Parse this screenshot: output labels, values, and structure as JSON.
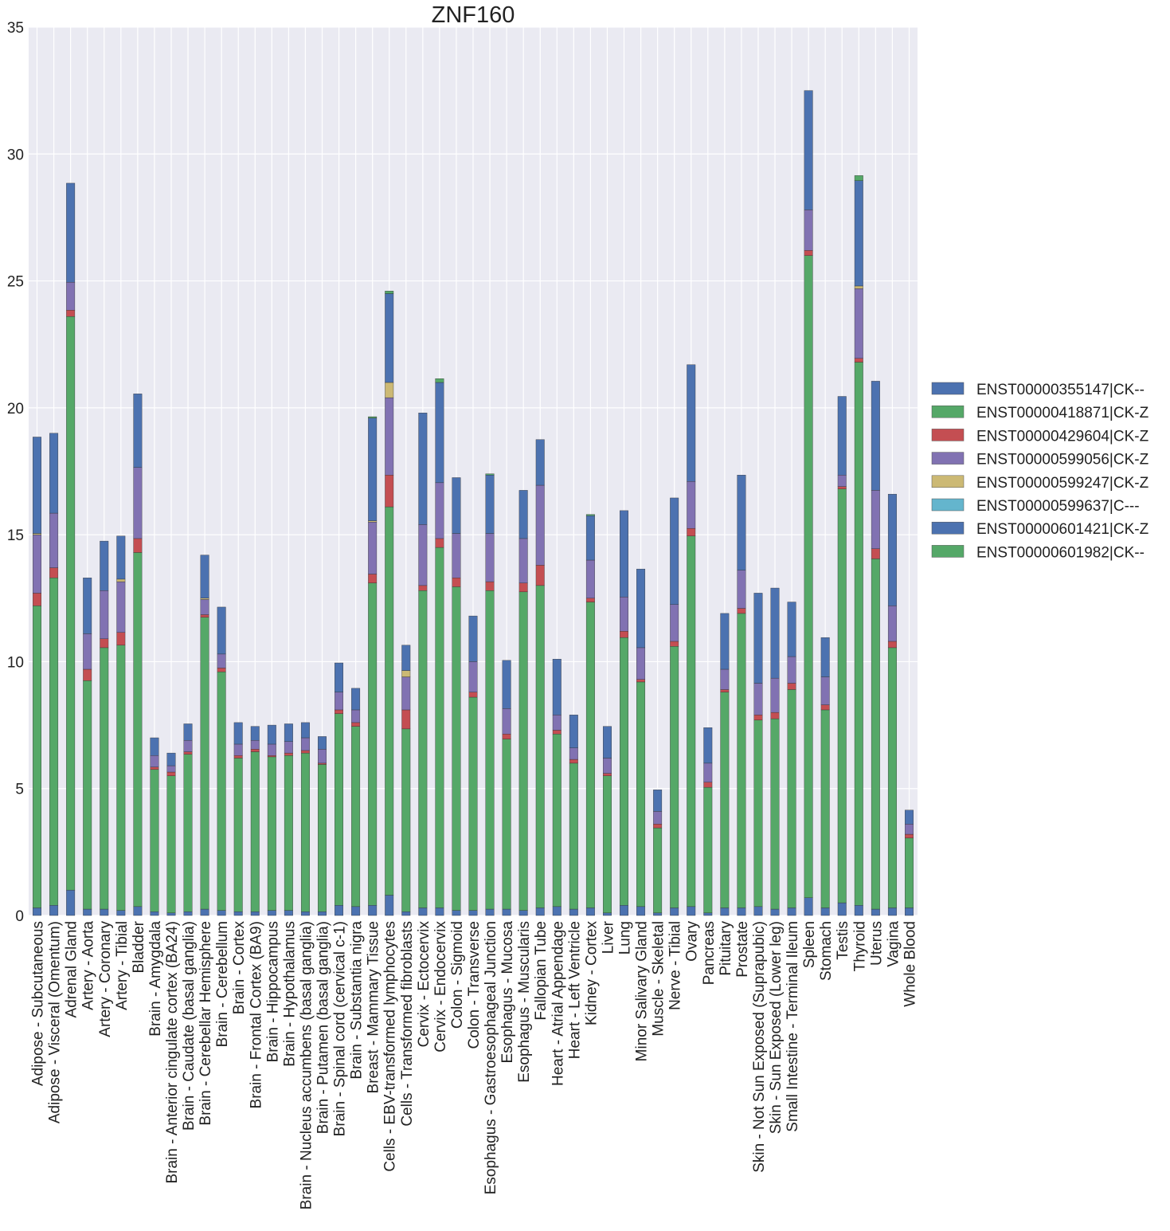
{
  "chart_data": {
    "type": "bar",
    "stacked": true,
    "title": "ZNF160",
    "xlabel": "",
    "ylabel": "",
    "ylim": [
      0,
      35
    ],
    "yticks": [
      0,
      5,
      10,
      15,
      20,
      25,
      30,
      35
    ],
    "grid": true,
    "legend_position": "right",
    "categories": [
      "Adipose - Subcutaneous",
      "Adipose - Visceral (Omentum)",
      "Adrenal Gland",
      "Artery - Aorta",
      "Artery - Coronary",
      "Artery - Tibial",
      "Bladder",
      "Brain - Amygdala",
      "Brain - Anterior cingulate cortex (BA24)",
      "Brain - Caudate (basal ganglia)",
      "Brain - Cerebellar Hemisphere",
      "Brain - Cerebellum",
      "Brain - Cortex",
      "Brain - Frontal Cortex (BA9)",
      "Brain - Hippocampus",
      "Brain - Hypothalamus",
      "Brain - Nucleus accumbens (basal ganglia)",
      "Brain - Putamen (basal ganglia)",
      "Brain - Spinal cord (cervical c-1)",
      "Brain - Substantia nigra",
      "Breast - Mammary Tissue",
      "Cells - EBV-transformed lymphocytes",
      "Cells - Transformed fibroblasts",
      "Cervix - Ectocervix",
      "Cervix - Endocervix",
      "Colon - Sigmoid",
      "Colon - Transverse",
      "Esophagus - Gastroesophageal Junction",
      "Esophagus - Mucosa",
      "Esophagus - Muscularis",
      "Fallopian Tube",
      "Heart - Atrial Appendage",
      "Heart - Left Ventricle",
      "Kidney - Cortex",
      "Liver",
      "Lung",
      "Minor Salivary Gland",
      "Muscle - Skeletal",
      "Nerve - Tibial",
      "Ovary",
      "Pancreas",
      "Pituitary",
      "Prostate",
      "Skin - Not Sun Exposed (Suprapubic)",
      "Skin - Sun Exposed (Lower leg)",
      "Small Intestine - Terminal Ileum",
      "Spleen",
      "Stomach",
      "Testis",
      "Thyroid",
      "Uterus",
      "Vagina",
      "Whole Blood"
    ],
    "series": [
      {
        "name": "ENST00000355147|CK--",
        "color": "#4C72B0",
        "values": [
          0.3,
          0.4,
          1.0,
          0.25,
          0.25,
          0.2,
          0.35,
          0.15,
          0.1,
          0.15,
          0.25,
          0.2,
          0.15,
          0.15,
          0.2,
          0.2,
          0.15,
          0.15,
          0.4,
          0.35,
          0.4,
          0.8,
          0.15,
          0.3,
          0.3,
          0.2,
          0.2,
          0.25,
          0.25,
          0.2,
          0.3,
          0.35,
          0.25,
          0.3,
          0.1,
          0.4,
          0.35,
          0.1,
          0.3,
          0.35,
          0.1,
          0.3,
          0.3,
          0.35,
          0.25,
          0.3,
          0.7,
          0.3,
          0.5,
          0.4,
          0.25,
          0.3,
          0.3
        ]
      },
      {
        "name": "ENST00000418871|CK-Z",
        "color": "#55A868",
        "values": [
          11.9,
          12.9,
          22.6,
          9.0,
          10.3,
          10.45,
          13.95,
          5.6,
          5.4,
          6.2,
          11.5,
          9.4,
          6.05,
          6.3,
          6.05,
          6.1,
          6.25,
          5.8,
          7.55,
          7.1,
          12.7,
          15.3,
          7.2,
          12.5,
          14.2,
          12.75,
          8.4,
          12.55,
          6.7,
          12.55,
          12.7,
          6.8,
          5.75,
          12.05,
          5.4,
          10.55,
          8.85,
          3.35,
          10.3,
          14.6,
          4.95,
          8.5,
          11.6,
          7.35,
          7.5,
          8.6,
          25.3,
          7.8,
          16.3,
          21.4,
          13.8,
          10.25,
          2.75
        ]
      },
      {
        "name": "ENST00000429604|CK-Z",
        "color": "#C44E52",
        "values": [
          0.5,
          0.4,
          0.25,
          0.45,
          0.35,
          0.5,
          0.55,
          0.1,
          0.15,
          0.1,
          0.1,
          0.15,
          0.1,
          0.1,
          0.05,
          0.1,
          0.1,
          0.05,
          0.15,
          0.15,
          0.35,
          1.25,
          0.75,
          0.2,
          0.35,
          0.35,
          0.2,
          0.35,
          0.2,
          0.35,
          0.8,
          0.15,
          0.15,
          0.15,
          0.1,
          0.25,
          0.1,
          0.15,
          0.2,
          0.3,
          0.2,
          0.1,
          0.2,
          0.2,
          0.25,
          0.25,
          0.2,
          0.2,
          0.1,
          0.15,
          0.4,
          0.25,
          0.15
        ]
      },
      {
        "name": "ENST00000599056|CK-Z",
        "color": "#8172B2",
        "values": [
          2.3,
          2.15,
          1.1,
          1.4,
          1.9,
          2.0,
          2.8,
          0.45,
          0.25,
          0.45,
          0.6,
          0.55,
          0.45,
          0.35,
          0.45,
          0.45,
          0.5,
          0.55,
          0.7,
          0.5,
          2.05,
          3.05,
          1.3,
          2.4,
          2.2,
          1.75,
          1.2,
          1.9,
          1.0,
          1.75,
          3.15,
          0.6,
          0.45,
          1.5,
          0.6,
          1.35,
          1.25,
          0.5,
          1.45,
          1.85,
          0.75,
          0.8,
          1.5,
          1.25,
          1.35,
          1.05,
          1.6,
          1.1,
          0.45,
          2.75,
          2.3,
          1.4,
          0.4
        ]
      },
      {
        "name": "ENST00000599247|CK-Z",
        "color": "#CCB974",
        "values": [
          0.05,
          0.0,
          0.0,
          0.0,
          0.0,
          0.1,
          0.0,
          0.0,
          0.0,
          0.0,
          0.05,
          0.0,
          0.0,
          0.0,
          0.0,
          0.0,
          0.0,
          0.0,
          0.0,
          0.0,
          0.05,
          0.6,
          0.25,
          0.0,
          0.0,
          0.0,
          0.0,
          0.0,
          0.0,
          0.0,
          0.0,
          0.0,
          0.0,
          0.0,
          0.0,
          0.0,
          0.0,
          0.0,
          0.0,
          0.0,
          0.0,
          0.0,
          0.0,
          0.0,
          0.0,
          0.0,
          0.0,
          0.0,
          0.0,
          0.1,
          0.0,
          0.0,
          0.0
        ]
      },
      {
        "name": "ENST00000599637|C---",
        "color": "#64B5CD",
        "values": [
          0,
          0,
          0,
          0,
          0,
          0,
          0,
          0,
          0,
          0,
          0,
          0,
          0,
          0,
          0,
          0,
          0,
          0,
          0,
          0,
          0,
          0,
          0,
          0,
          0,
          0,
          0,
          0,
          0,
          0,
          0,
          0,
          0,
          0,
          0,
          0,
          0,
          0,
          0,
          0,
          0,
          0,
          0,
          0,
          0,
          0,
          0,
          0,
          0,
          0,
          0,
          0,
          0
        ]
      },
      {
        "name": "ENST00000601421|CK-Z",
        "color": "#4C72B0",
        "values": [
          3.8,
          3.15,
          3.9,
          2.2,
          1.95,
          1.7,
          2.9,
          0.7,
          0.5,
          0.65,
          1.7,
          1.85,
          0.85,
          0.55,
          0.75,
          0.7,
          0.6,
          0.5,
          1.15,
          0.85,
          4.05,
          3.5,
          1.0,
          4.4,
          3.95,
          2.2,
          1.8,
          2.3,
          1.9,
          1.9,
          1.8,
          2.2,
          1.3,
          1.75,
          1.25,
          3.4,
          3.1,
          0.85,
          4.2,
          4.6,
          1.4,
          2.2,
          3.75,
          3.55,
          3.55,
          2.15,
          4.7,
          1.55,
          3.1,
          4.15,
          4.3,
          4.4,
          0.55
        ]
      },
      {
        "name": "ENST00000601982|CK--",
        "color": "#55A868",
        "values": [
          0,
          0,
          0,
          0,
          0,
          0,
          0,
          0,
          0,
          0,
          0,
          0,
          0,
          0,
          0,
          0,
          0,
          0,
          0,
          0,
          0.05,
          0.1,
          0,
          0,
          0.15,
          0,
          0,
          0.05,
          0,
          0,
          0,
          0,
          0,
          0.05,
          0,
          0,
          0,
          0,
          0,
          0,
          0,
          0,
          0,
          0,
          0,
          0,
          0,
          0,
          0,
          0.2,
          0,
          0,
          0
        ]
      }
    ]
  }
}
